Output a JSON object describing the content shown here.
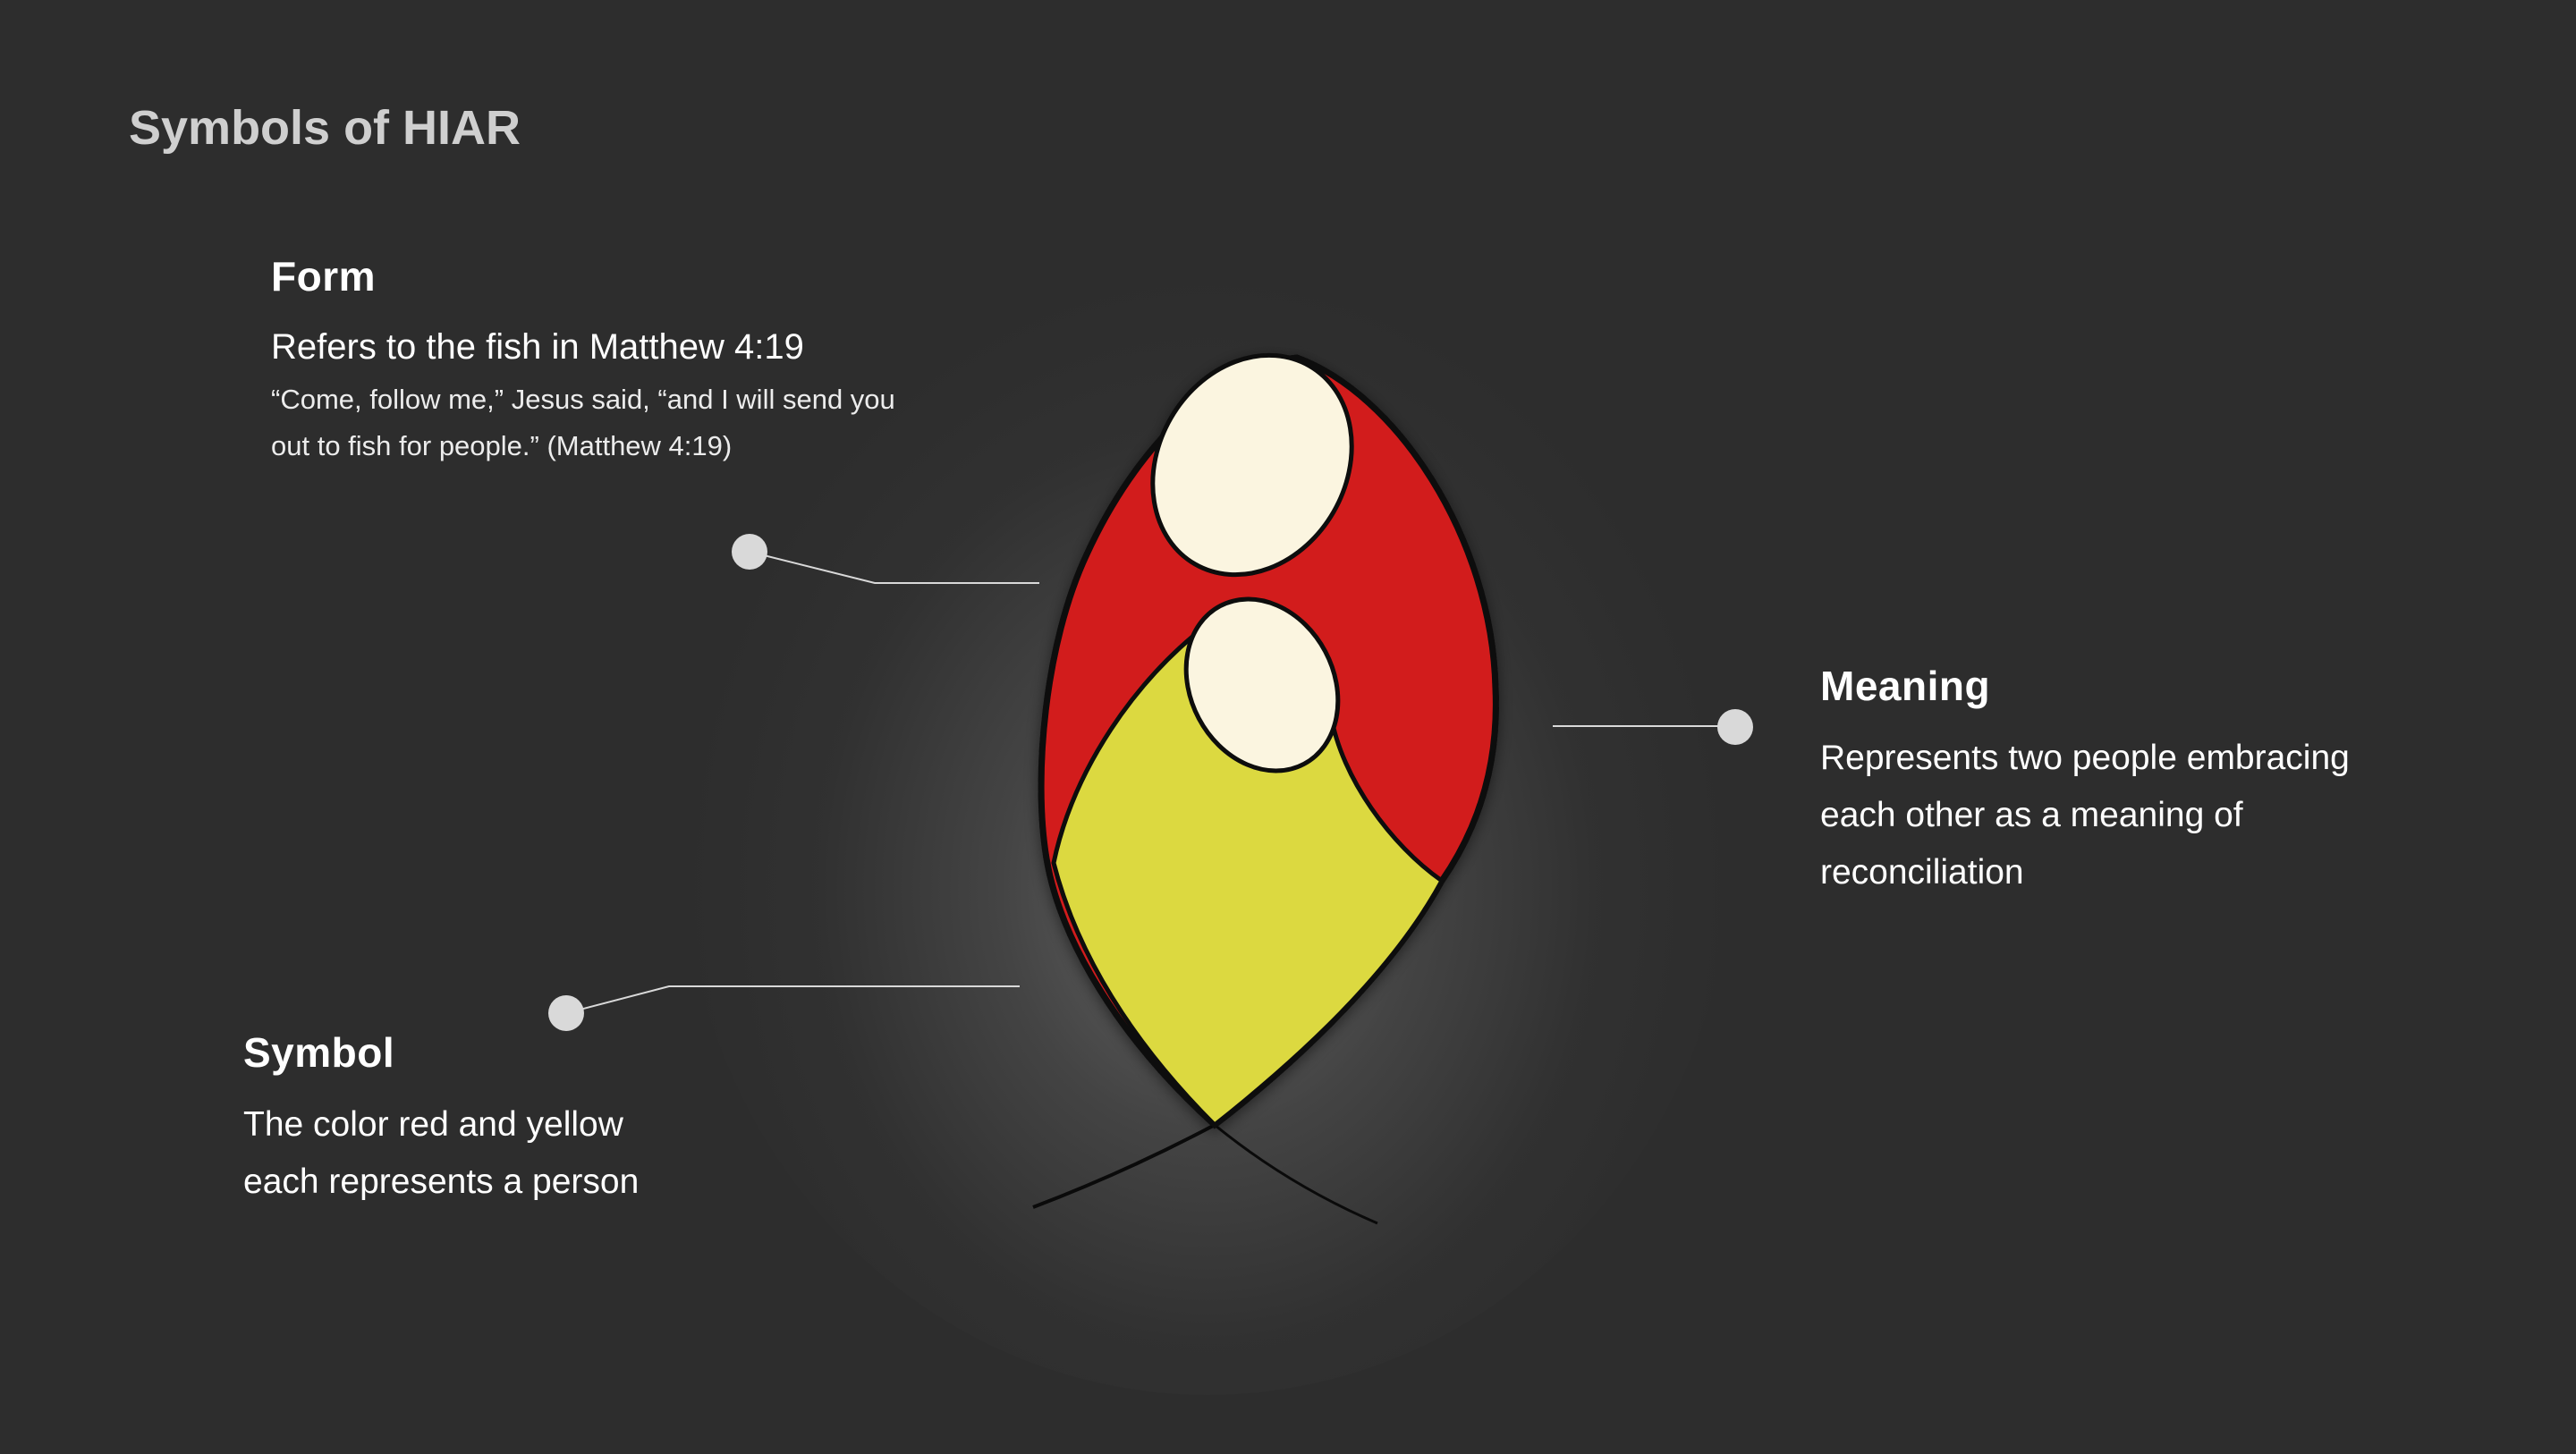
{
  "title": "Symbols of HIAR",
  "form": {
    "heading": "Form",
    "subtitle": "Refers to the fish in Matthew 4:19",
    "quote": "“Come, follow me,” Jesus said, “and I will send you out to fish for people.” (Matthew 4:19)"
  },
  "meaning": {
    "heading": "Meaning",
    "text": "Represents two people embracing each other as a meaning of reconciliation"
  },
  "symbol": {
    "heading": "Symbol",
    "text": "The color red and yellow each represents a person"
  },
  "colors": {
    "background": "#2d2d2d",
    "red": "#d21c1e",
    "yellow": "#dcd941",
    "cream": "#fbf5e0",
    "callout": "#d9d9d9"
  }
}
